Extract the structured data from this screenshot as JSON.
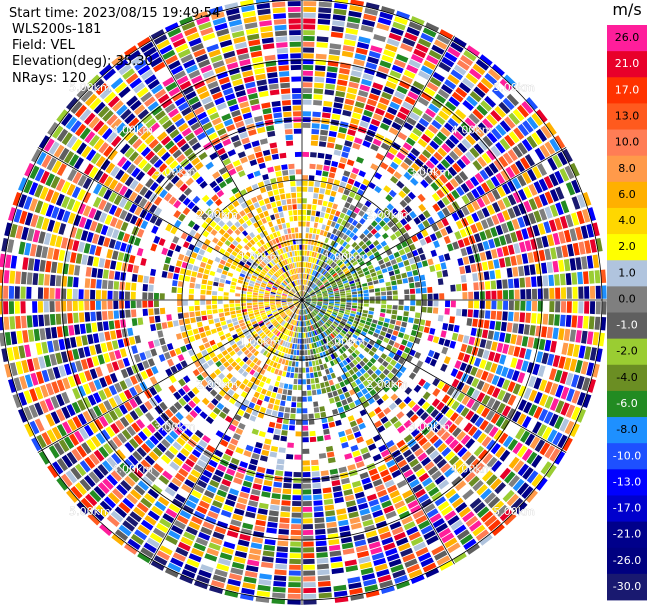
{
  "header": {
    "start_time": "Start time: 2023/08/15 19:49:54",
    "instrument": "WLS200s-181",
    "field": "Field: VEL",
    "elevation": "Elevation(deg): 35.30",
    "nrays": "NRays: 120"
  },
  "chart_data": {
    "type": "heatmap",
    "projection": "polar-ppi",
    "field": "VEL",
    "units": "m/s",
    "nrays": 120,
    "range_rings_km": [
      1.0,
      2.0,
      3.0,
      4.0,
      5.0
    ],
    "ring_label_text": "km",
    "colorbar": {
      "title": "m/s",
      "ticks": [
        "26.0",
        "21.0",
        "17.0",
        "13.0",
        "10.0",
        "8.0",
        "6.0",
        "4.0",
        "2.0",
        "1.0",
        "0.0",
        "-1.0",
        "-2.0",
        "-4.0",
        "-6.0",
        "-8.0",
        "-10.0",
        "-13.0",
        "-17.0",
        "-21.0",
        "-26.0",
        "-30.0"
      ],
      "colors": [
        "#ff1e9b",
        "#e8002a",
        "#ff3300",
        "#ff5a1e",
        "#ff7d55",
        "#ff9a4a",
        "#ffb000",
        "#ffd700",
        "#ffff00",
        "#b0c4de",
        "#7f7f7f",
        "#5f5f5f",
        "#9acd32",
        "#6b8e23",
        "#228b22",
        "#1e90ff",
        "#1e50ff",
        "#0000ff",
        "#0000cd",
        "#00008b",
        "#000080",
        "#191970"
      ]
    }
  }
}
